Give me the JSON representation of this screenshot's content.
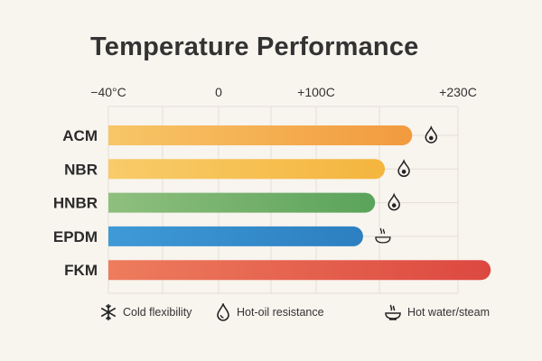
{
  "chart_data": {
    "type": "bar",
    "orientation": "horizontal",
    "title": "Temperature Performance",
    "x_ticks": [
      {
        "value": -40,
        "label": "−40°C"
      },
      {
        "value": 0,
        "label": "0"
      },
      {
        "value": 100,
        "label": "+100C"
      },
      {
        "value": 230,
        "label": "+230C"
      }
    ],
    "categories": [
      "ACM",
      "NBR",
      "HNBR",
      "EPDM",
      "FKM"
    ],
    "range_start": -40,
    "values": [
      188,
      163,
      154,
      143,
      260
    ],
    "colors": [
      [
        "#f7c667",
        "#f29a3e"
      ],
      [
        "#f8cc6a",
        "#f4b53d"
      ],
      [
        "#8fbf7e",
        "#5aa35b"
      ],
      [
        "#3f9ad6",
        "#2c7fc0"
      ],
      [
        "#ee7c5d",
        "#dc4840"
      ]
    ],
    "icons": [
      "hot-oil-icon",
      "hot-oil-icon",
      "hot-oil-icon",
      "hot-water-steam-icon",
      ""
    ],
    "grid": true
  },
  "legend": [
    {
      "icon": "snowflake-icon",
      "label": "Cold flexibility"
    },
    {
      "icon": "hot-oil-icon",
      "label": "Hot-oil resistance"
    },
    {
      "icon": "hot-water-steam-icon",
      "label": "Hot water/steam"
    }
  ]
}
